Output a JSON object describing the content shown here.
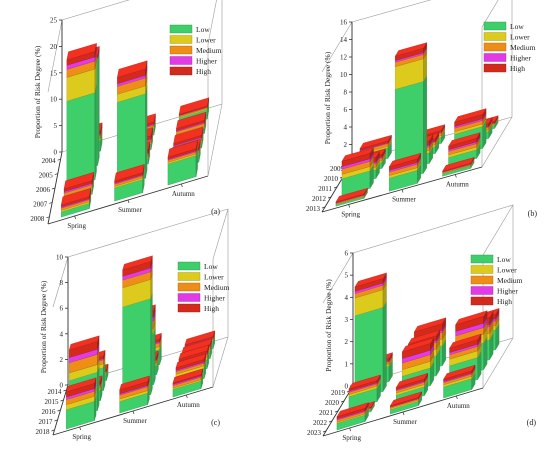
{
  "legend": {
    "low": "Low",
    "lower": "Lower",
    "medium": "Medium",
    "higher": "Higher",
    "high": "High"
  },
  "colors": {
    "low": "#3ecf6b",
    "lower": "#dccb1c",
    "medium": "#ee8e17",
    "higher": "#e23be6",
    "high": "#d42a1c",
    "axis": "#333333"
  },
  "chart_data": [
    {
      "type": "bar",
      "panel_label": "(a)",
      "ylabel": "Proportion of Risk Degree (%)",
      "yticks": [
        0,
        5,
        10,
        15,
        20,
        25
      ],
      "ylim": [
        0,
        25
      ],
      "years": [
        "2004",
        "2005",
        "2006",
        "2007",
        "2008"
      ],
      "seasons": [
        "Spring",
        "Summer",
        "Autumn"
      ],
      "stack_order": [
        "Low",
        "Lower",
        "Medium",
        "Higher",
        "High"
      ],
      "bars": [
        {
          "year": "2004",
          "season": "Spring",
          "values": [
            2.0,
            0.5,
            0.5,
            0.3,
            0.5
          ]
        },
        {
          "year": "2004",
          "season": "Summer",
          "values": [
            1.3,
            0.3,
            0.3,
            0.2,
            0.4
          ]
        },
        {
          "year": "2004",
          "season": "Autumn",
          "values": [
            1.8,
            0.2,
            0.2,
            0.1,
            0.2
          ]
        },
        {
          "year": "2005",
          "season": "Spring",
          "values": [
            20.0,
            0.0,
            0.3,
            0.2,
            0.5
          ]
        },
        {
          "year": "2005",
          "season": "Summer",
          "values": [
            1.0,
            0.3,
            0.5,
            0.2,
            0.6
          ]
        },
        {
          "year": "2005",
          "season": "Autumn",
          "values": [
            1.0,
            0.4,
            0.5,
            0.2,
            0.4
          ]
        },
        {
          "year": "2006",
          "season": "Spring",
          "values": [
            16.5,
            4.5,
            1.5,
            0.8,
            1.0
          ]
        },
        {
          "year": "2006",
          "season": "Summer",
          "values": [
            1.0,
            0.3,
            0.5,
            0.3,
            0.6
          ]
        },
        {
          "year": "2006",
          "season": "Autumn",
          "values": [
            1.0,
            0.4,
            0.4,
            0.2,
            0.4
          ]
        },
        {
          "year": "2007",
          "season": "Spring",
          "values": [
            1.0,
            0.3,
            0.5,
            0.3,
            0.5
          ]
        },
        {
          "year": "2007",
          "season": "Summer",
          "values": [
            16.0,
            1.5,
            1.5,
            0.5,
            1.2
          ]
        },
        {
          "year": "2007",
          "season": "Autumn",
          "values": [
            1.5,
            0.3,
            0.4,
            0.2,
            0.4
          ]
        },
        {
          "year": "2008",
          "season": "Spring",
          "values": [
            1.0,
            0.3,
            0.4,
            0.2,
            0.4
          ]
        },
        {
          "year": "2008",
          "season": "Summer",
          "values": [
            2.5,
            0.3,
            0.4,
            0.2,
            0.4
          ]
        },
        {
          "year": "2008",
          "season": "Autumn",
          "values": [
            4.0,
            0.3,
            0.4,
            0.2,
            0.4
          ]
        }
      ]
    },
    {
      "type": "bar",
      "panel_label": "(b)",
      "ylabel": "Proportion of Risk Degree (%)",
      "yticks": [
        0,
        2,
        4,
        6,
        8,
        10,
        12,
        14,
        16
      ],
      "ylim": [
        0,
        16
      ],
      "years": [
        "2009",
        "2010",
        "2011",
        "2012",
        "2013"
      ],
      "seasons": [
        "Spring",
        "Summer",
        "Autumn"
      ],
      "stack_order": [
        "Low",
        "Lower",
        "Medium",
        "Higher",
        "High"
      ],
      "bars": [
        {
          "year": "2009",
          "season": "Spring",
          "values": [
            1.2,
            0.2,
            0.3,
            0.1,
            0.2
          ]
        },
        {
          "year": "2009",
          "season": "Summer",
          "values": [
            0.7,
            0.2,
            0.3,
            0.1,
            0.2
          ]
        },
        {
          "year": "2009",
          "season": "Autumn",
          "values": [
            0.4,
            0.1,
            0.1,
            0.05,
            0.15
          ]
        },
        {
          "year": "2010",
          "season": "Spring",
          "values": [
            0.7,
            0.2,
            0.3,
            0.1,
            0.3
          ]
        },
        {
          "year": "2010",
          "season": "Summer",
          "values": [
            0.8,
            0.2,
            0.3,
            0.1,
            0.3
          ]
        },
        {
          "year": "2010",
          "season": "Autumn",
          "values": [
            0.8,
            0.2,
            0.3,
            0.1,
            0.3
          ]
        },
        {
          "year": "2011",
          "season": "Spring",
          "values": [
            1.0,
            0.3,
            0.4,
            0.2,
            0.5
          ]
        },
        {
          "year": "2011",
          "season": "Summer",
          "values": [
            1.2,
            0.3,
            0.4,
            0.2,
            0.5
          ]
        },
        {
          "year": "2011",
          "season": "Autumn",
          "values": [
            2.5,
            0.3,
            0.4,
            0.2,
            0.5
          ]
        },
        {
          "year": "2012",
          "season": "Spring",
          "values": [
            2.0,
            0.5,
            0.6,
            0.3,
            0.6
          ]
        },
        {
          "year": "2012",
          "season": "Summer",
          "values": [
            10.5,
            2.6,
            0.5,
            0.2,
            0.5
          ]
        },
        {
          "year": "2012",
          "season": "Autumn",
          "values": [
            1.0,
            0.3,
            0.4,
            0.2,
            0.4
          ]
        },
        {
          "year": "2013",
          "season": "Spring",
          "values": [
            0.2,
            0.05,
            0.1,
            0.05,
            0.1
          ]
        },
        {
          "year": "2013",
          "season": "Summer",
          "values": [
            1.5,
            0.3,
            0.4,
            0.2,
            0.4
          ]
        },
        {
          "year": "2013",
          "season": "Autumn",
          "values": [
            0.3,
            0.05,
            0.1,
            0.05,
            0.1
          ]
        }
      ]
    },
    {
      "type": "bar",
      "panel_label": "(c)",
      "ylabel": "Proportion of Risk Degree (%)",
      "yticks": [
        0,
        2,
        4,
        6,
        8,
        10
      ],
      "ylim": [
        0,
        10
      ],
      "years": [
        "2014",
        "2015",
        "2016",
        "2017",
        "2018"
      ],
      "seasons": [
        "Spring",
        "Summer",
        "Autumn"
      ],
      "stack_order": [
        "Low",
        "Lower",
        "Medium",
        "Higher",
        "High"
      ],
      "bars": [
        {
          "year": "2014",
          "season": "Spring",
          "values": [
            0.5,
            0.1,
            0.1,
            0.05,
            0.1
          ]
        },
        {
          "year": "2014",
          "season": "Summer",
          "values": [
            1.2,
            0.2,
            0.3,
            0.1,
            0.2
          ]
        },
        {
          "year": "2014",
          "season": "Autumn",
          "values": [
            0.6,
            0.1,
            0.1,
            0.05,
            0.1
          ]
        },
        {
          "year": "2015",
          "season": "Spring",
          "values": [
            1.8,
            0.3,
            0.3,
            0.1,
            0.2
          ]
        },
        {
          "year": "2015",
          "season": "Summer",
          "values": [
            0.7,
            0.2,
            0.2,
            0.1,
            0.2
          ]
        },
        {
          "year": "2015",
          "season": "Autumn",
          "values": [
            0.6,
            0.1,
            0.2,
            0.1,
            0.1
          ]
        },
        {
          "year": "2016",
          "season": "Spring",
          "values": [
            0.8,
            0.2,
            0.2,
            0.1,
            0.2
          ]
        },
        {
          "year": "2016",
          "season": "Summer",
          "values": [
            4.0,
            0.4,
            0.6,
            0.3,
            0.5
          ]
        },
        {
          "year": "2016",
          "season": "Autumn",
          "values": [
            0.7,
            0.2,
            0.2,
            0.1,
            0.2
          ]
        },
        {
          "year": "2017",
          "season": "Spring",
          "values": [
            3.0,
            0.6,
            0.8,
            0.4,
            0.6
          ]
        },
        {
          "year": "2017",
          "season": "Summer",
          "values": [
            7.5,
            1.5,
            0.6,
            0.3,
            0.5
          ]
        },
        {
          "year": "2017",
          "season": "Autumn",
          "values": [
            0.8,
            0.2,
            0.2,
            0.1,
            0.2
          ]
        },
        {
          "year": "2018",
          "season": "Spring",
          "values": [
            1.5,
            0.4,
            0.4,
            0.2,
            0.4
          ]
        },
        {
          "year": "2018",
          "season": "Summer",
          "values": [
            0.9,
            0.2,
            0.3,
            0.1,
            0.3
          ]
        },
        {
          "year": "2018",
          "season": "Autumn",
          "values": [
            0.6,
            0.1,
            0.2,
            0.1,
            0.1
          ]
        }
      ]
    },
    {
      "type": "bar",
      "panel_label": "(d)",
      "ylabel": "Proportion of Risk Degree (%)",
      "yticks": [
        0,
        1,
        2,
        3,
        4,
        5,
        6
      ],
      "ylim": [
        0,
        6
      ],
      "years": [
        "2019",
        "2020",
        "2021",
        "2022",
        "2023"
      ],
      "seasons": [
        "Spring",
        "Summer",
        "Autumn"
      ],
      "stack_order": [
        "Low",
        "Lower",
        "Medium",
        "Higher",
        "High"
      ],
      "bars": [
        {
          "year": "2019",
          "season": "Spring",
          "values": [
            0.7,
            0.1,
            0.1,
            0.05,
            0.1
          ]
        },
        {
          "year": "2019",
          "season": "Summer",
          "values": [
            0.9,
            0.3,
            0.3,
            0.1,
            0.3
          ]
        },
        {
          "year": "2019",
          "season": "Autumn",
          "values": [
            0.9,
            0.2,
            0.2,
            0.1,
            0.2
          ]
        },
        {
          "year": "2020",
          "season": "Spring",
          "values": [
            3.8,
            0.8,
            0.2,
            0.1,
            0.2
          ]
        },
        {
          "year": "2020",
          "season": "Summer",
          "values": [
            0.9,
            0.3,
            0.3,
            0.1,
            0.2
          ]
        },
        {
          "year": "2020",
          "season": "Autumn",
          "values": [
            0.9,
            0.3,
            0.3,
            0.1,
            0.3
          ]
        },
        {
          "year": "2021",
          "season": "Spring",
          "values": [
            0.6,
            0.1,
            0.1,
            0.05,
            0.1
          ]
        },
        {
          "year": "2021",
          "season": "Summer",
          "values": [
            0.8,
            0.3,
            0.3,
            0.2,
            0.3
          ]
        },
        {
          "year": "2021",
          "season": "Autumn",
          "values": [
            1.2,
            0.4,
            0.3,
            0.2,
            0.3
          ]
        },
        {
          "year": "2022",
          "season": "Spring",
          "values": [
            0.1,
            0.03,
            0.03,
            0.02,
            0.02
          ]
        },
        {
          "year": "2022",
          "season": "Summer",
          "values": [
            0.4,
            0.1,
            0.1,
            0.05,
            0.1
          ]
        },
        {
          "year": "2022",
          "season": "Autumn",
          "values": [
            1.0,
            0.3,
            0.2,
            0.1,
            0.2
          ]
        },
        {
          "year": "2023",
          "season": "Spring",
          "values": [
            0.3,
            0.05,
            0.1,
            0.05,
            0.1
          ]
        },
        {
          "year": "2023",
          "season": "Summer",
          "values": [
            0.2,
            0.05,
            0.05,
            0.02,
            0.05
          ]
        },
        {
          "year": "2023",
          "season": "Autumn",
          "values": [
            0.5,
            0.1,
            0.1,
            0.05,
            0.1
          ]
        }
      ]
    }
  ]
}
